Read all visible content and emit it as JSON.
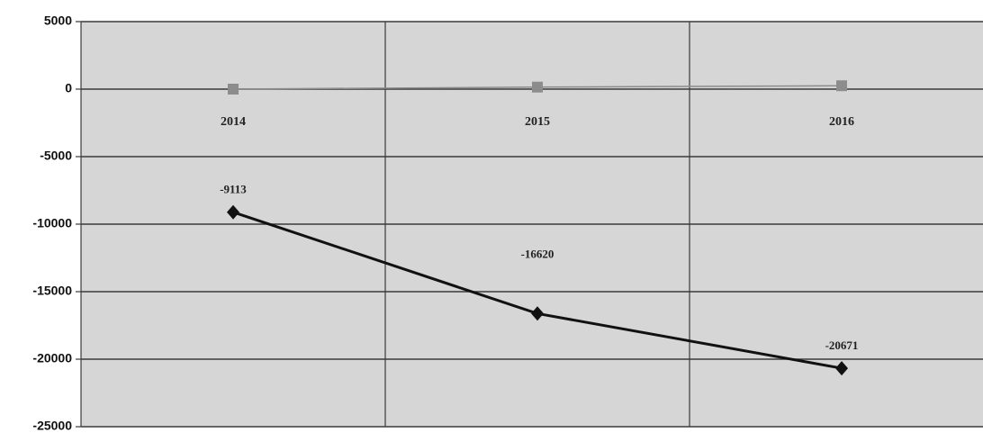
{
  "chart_data": {
    "type": "line",
    "categories": [
      "2014",
      "2015",
      "2016"
    ],
    "series": [
      {
        "color": "#111111",
        "values": [
          -9113,
          -16620,
          -20671
        ]
      },
      {
        "color": "#8c8c8c",
        "values": [
          0,
          150,
          250
        ]
      }
    ],
    "ylim": [
      -25000,
      5000
    ],
    "yticks": [
      -25000,
      -20000,
      -15000,
      -10000,
      -5000,
      0,
      5000
    ],
    "grid": true
  }
}
